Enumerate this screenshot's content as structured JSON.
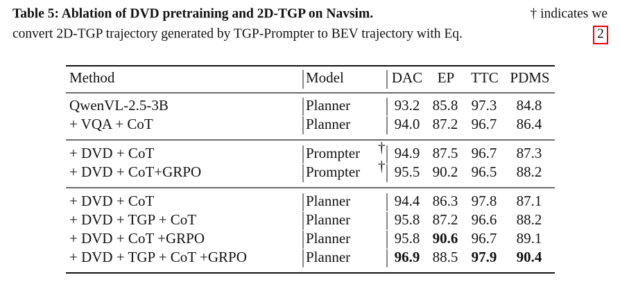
{
  "caption": {
    "label": "Table 5: Ablation of DVD pretraining and 2D-TGP on Navsim.",
    "text_line1": "† indicates we",
    "text_line2": "convert 2D-TGP trajectory generated by TGP-Prompter to BEV trajectory with Eq.",
    "ref": "2"
  },
  "table": {
    "header": [
      "Method",
      "Model",
      "DAC",
      "EP",
      "TTC",
      "PDMS"
    ],
    "groups": [
      [
        {
          "method": "QwenVL-2.5-3B",
          "model": "Planner",
          "values": [
            "93.2",
            "85.8",
            "97.3",
            "84.8"
          ],
          "bold": []
        },
        {
          "method": "+ VQA + CoT",
          "model": "Planner",
          "values": [
            "94.0",
            "87.2",
            "96.7",
            "86.4"
          ],
          "bold": []
        }
      ],
      [
        {
          "method": "+ DVD + CoT",
          "model": "Prompter",
          "note": "†",
          "values": [
            "94.9",
            "87.5",
            "96.7",
            "87.3"
          ],
          "bold": []
        },
        {
          "method": "+ DVD + CoT+GRPO",
          "model": "Prompter",
          "note": "†",
          "values": [
            "95.5",
            "90.2",
            "96.5",
            "88.2"
          ],
          "bold": []
        }
      ],
      [
        {
          "method": "+ DVD + CoT",
          "model": "Planner",
          "values": [
            "94.4",
            "86.3",
            "97.8",
            "87.1"
          ],
          "bold": []
        },
        {
          "method": "+ DVD + TGP + CoT",
          "model": "Planner",
          "values": [
            "95.8",
            "87.2",
            "96.6",
            "88.2"
          ],
          "bold": []
        },
        {
          "method": "+ DVD + CoT +GRPO",
          "model": "Planner",
          "values": [
            "95.8",
            "90.6",
            "96.7",
            "89.1"
          ],
          "bold": [
            1
          ]
        },
        {
          "method": "+ DVD + TGP + CoT +GRPO",
          "model": "Planner",
          "values": [
            "96.9",
            "88.5",
            "97.9",
            "90.4"
          ],
          "bold": [
            0,
            2,
            3
          ]
        }
      ]
    ]
  }
}
